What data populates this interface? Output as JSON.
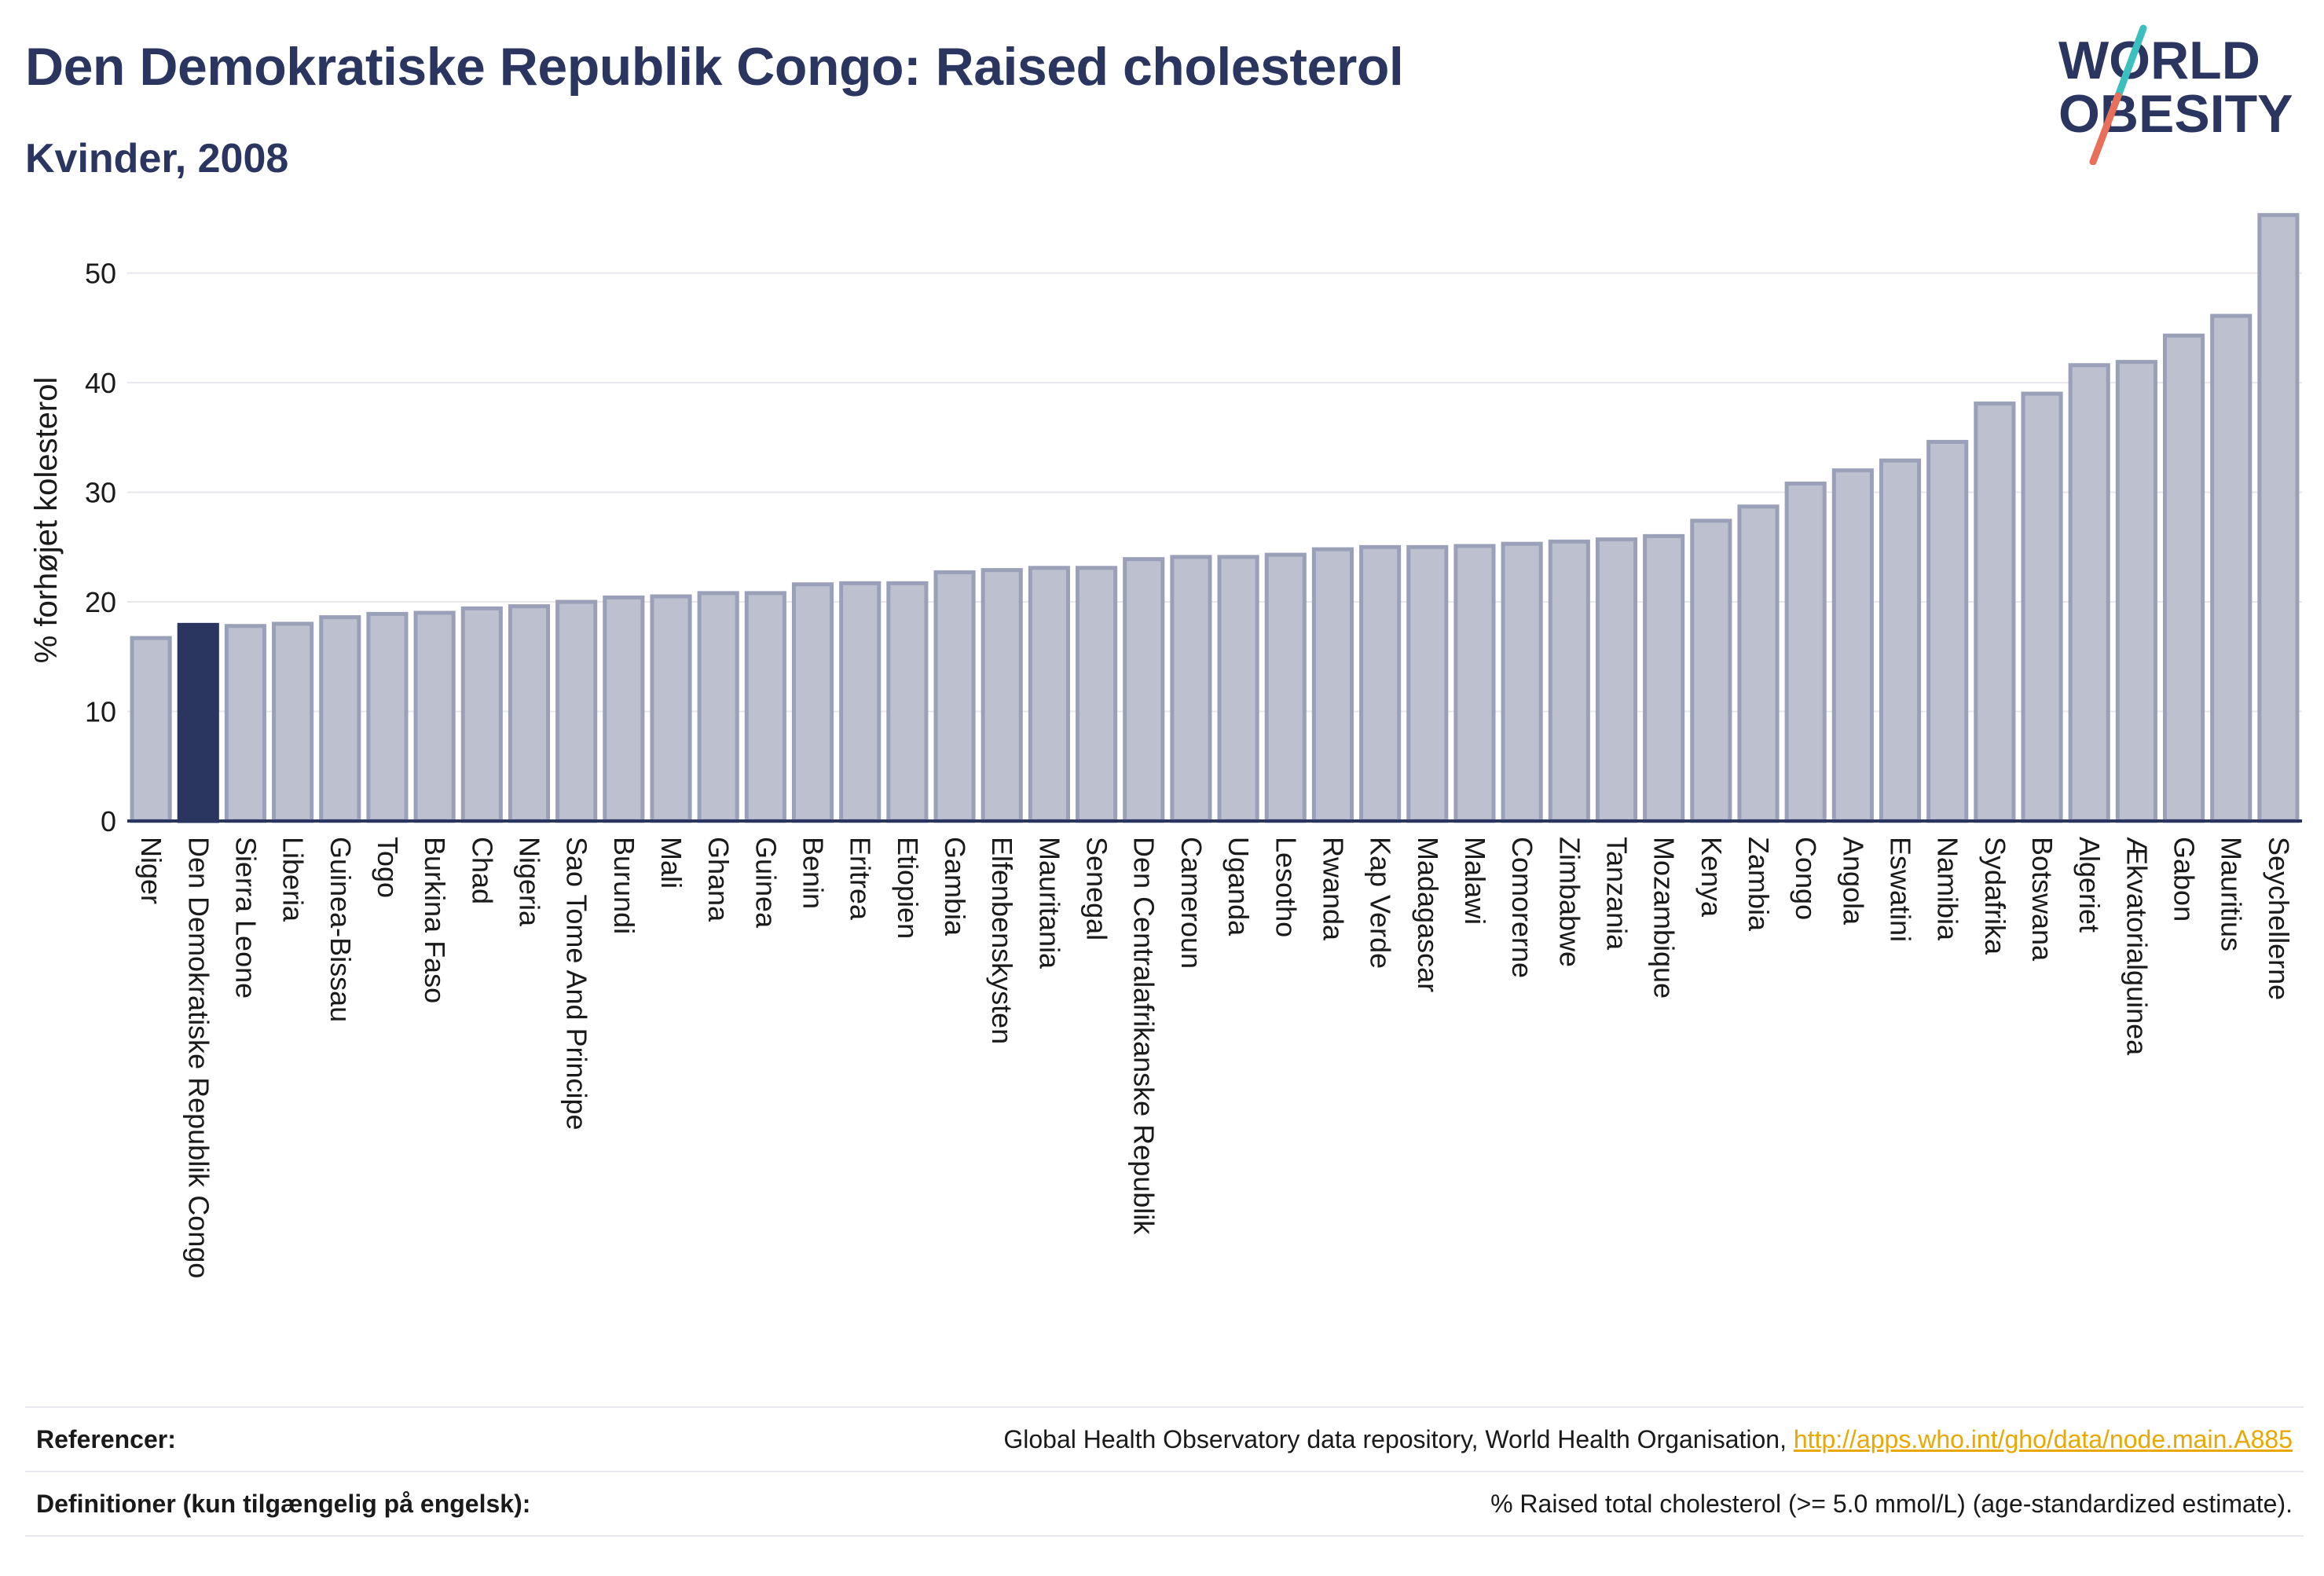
{
  "header": {
    "title": "Den Demokratiske Republik Congo: Raised cholesterol",
    "subtitle": "Kvinder, 2008"
  },
  "logo": {
    "line1": "WORLD",
    "line2": "OBESITY",
    "accent": "#3bbfbf",
    "accent2": "#e8705a",
    "color": "#2a3560"
  },
  "colors": {
    "bar": "#bcc0cf",
    "bar_stroke": "#9aa0b8",
    "highlight": "#2a3560",
    "axis": "#2a3560",
    "grid": "#e6e8ee"
  },
  "chart_data": {
    "type": "bar",
    "ylabel": "% forhøjet kolesterol",
    "xlabel": "",
    "ylim": [
      0,
      57
    ],
    "yticks": [
      0,
      10,
      20,
      30,
      40,
      50
    ],
    "grid": true,
    "highlight": "Den Demokratiske Republik Congo",
    "categories": [
      "Niger",
      "Den Demokratiske Republik Congo",
      "Sierra Leone",
      "Liberia",
      "Guinea-Bissau",
      "Togo",
      "Burkina Faso",
      "Chad",
      "Nigeria",
      "Sao Tome And Principe",
      "Burundi",
      "Mali",
      "Ghana",
      "Guinea",
      "Benin",
      "Eritrea",
      "Etiopien",
      "Gambia",
      "Elfenbenskysten",
      "Mauritania",
      "Senegal",
      "Den Centralafrikanske Republik",
      "Cameroun",
      "Uganda",
      "Lesotho",
      "Rwanda",
      "Kap Verde",
      "Madagascar",
      "Malawi",
      "Comorerne",
      "Zimbabwe",
      "Tanzania",
      "Mozambique",
      "Kenya",
      "Zambia",
      "Congo",
      "Angola",
      "Eswatini",
      "Namibia",
      "Sydafrika",
      "Botswana",
      "Algeriet",
      "Ækvatorialguinea",
      "Gabon",
      "Mauritius",
      "Seychellerne"
    ],
    "values": [
      16.7,
      17.9,
      17.8,
      18.0,
      18.6,
      18.9,
      19.0,
      19.4,
      19.6,
      20.0,
      20.4,
      20.5,
      20.8,
      20.8,
      21.6,
      21.7,
      21.7,
      22.7,
      22.9,
      23.1,
      23.1,
      23.9,
      24.1,
      24.1,
      24.3,
      24.8,
      25.0,
      25.0,
      25.1,
      25.3,
      25.5,
      25.7,
      26.0,
      27.4,
      28.7,
      30.8,
      32.0,
      32.9,
      34.6,
      38.1,
      39.0,
      41.6,
      41.9,
      44.3,
      46.1,
      55.3
    ]
  },
  "footer": {
    "ref_label": "Referencer:",
    "ref_text": "Global Health Observatory data repository, World Health Organisation, ",
    "ref_link": "http://apps.who.int/gho/data/node.main.A885",
    "def_label": "Definitioner (kun tilgængelig på engelsk):",
    "def_text": "% Raised total cholesterol (>= 5.0 mmol/L) (age-standardized estimate)."
  }
}
